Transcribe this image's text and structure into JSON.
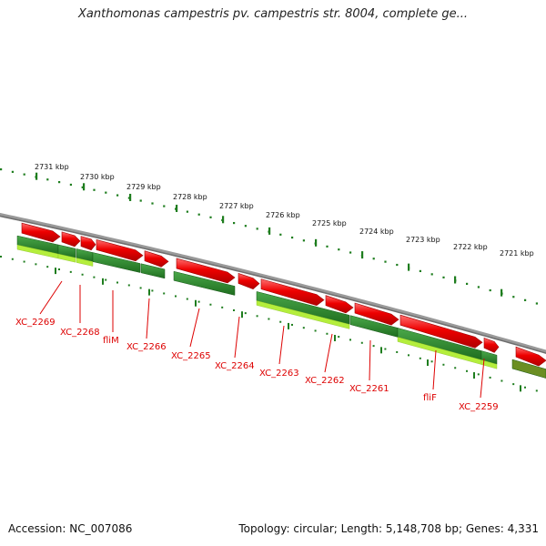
{
  "title": "Xanthomonas campestris pv. campestris str. 8004, complete ge...",
  "footer": {
    "accession": "Accession: NC_007086",
    "summary": "Topology: circular; Length: 5,148,708 bp; Genes: 4,331"
  },
  "colors": {
    "forward_gene": "#ee0000",
    "reverse_gene": "#2e8b2e",
    "reverse_gene_light": "#b4ee3c",
    "backbone": "#808080",
    "ruler": "#1e7d1e",
    "label": "#dd0000"
  },
  "ruler_labels": [
    "2731 kbp",
    "2730 kbp",
    "2729 kbp",
    "2728 kbp",
    "2727 kbp",
    "2726 kbp",
    "2725 kbp",
    "2724 kbp",
    "2723 kbp",
    "2722 kbp",
    "2721 kbp"
  ],
  "gene_labels": [
    "XC_2269",
    "XC_2268",
    "fliM",
    "XC_2266",
    "XC_2265",
    "XC_2264",
    "XC_2263",
    "XC_2262",
    "XC_2261",
    "fliF",
    "XC_2259"
  ]
}
